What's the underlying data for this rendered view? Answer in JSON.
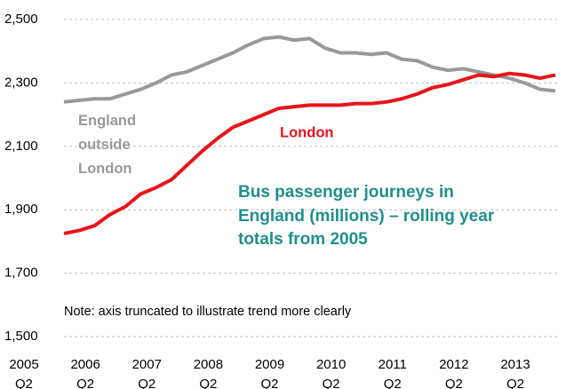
{
  "chart_data": {
    "type": "line",
    "title": [
      "Bus passenger journeys in",
      "England (millions) – rolling year",
      "totals from 2005"
    ],
    "annotation": "Note: axis truncated to illustrate trend more clearly",
    "categories": [
      "2005 Q2",
      null,
      null,
      null,
      "2006 Q2",
      null,
      null,
      null,
      "2007 Q2",
      null,
      null,
      null,
      "2008 Q2",
      null,
      null,
      null,
      "2009 Q2",
      null,
      null,
      null,
      "2010 Q2",
      null,
      null,
      null,
      "2011 Q2",
      null,
      null,
      null,
      "2012 Q2",
      null,
      null,
      null,
      "2013 Q2"
    ],
    "series": [
      {
        "name": "England outside London",
        "color": "#999999",
        "values": [
          2240,
          2245,
          2250,
          2250,
          2265,
          2280,
          2300,
          2325,
          2335,
          2355,
          2375,
          2395,
          2420,
          2440,
          2445,
          2435,
          2440,
          2410,
          2395,
          2395,
          2390,
          2395,
          2375,
          2370,
          2350,
          2340,
          2345,
          2335,
          2325,
          2315,
          2300,
          2280,
          2275
        ]
      },
      {
        "name": "London",
        "color": "#e8141b",
        "values": [
          1825,
          1835,
          1850,
          1885,
          1910,
          1950,
          1970,
          1995,
          2040,
          2085,
          2125,
          2160,
          2180,
          2200,
          2220,
          2225,
          2230,
          2230,
          2230,
          2235,
          2235,
          2240,
          2250,
          2265,
          2285,
          2295,
          2310,
          2325,
          2320,
          2330,
          2325,
          2315,
          2325
        ]
      }
    ],
    "ylim": [
      1500,
      2500
    ],
    "yticks": [
      {
        "value": 1500,
        "label": "1,500"
      },
      {
        "value": 1700,
        "label": "1,700"
      },
      {
        "value": 1900,
        "label": "1,900"
      },
      {
        "value": 2100,
        "label": "2,100"
      },
      {
        "value": 2300,
        "label": "2,300"
      },
      {
        "value": 2500,
        "label": "2,500"
      }
    ],
    "grid": true
  }
}
